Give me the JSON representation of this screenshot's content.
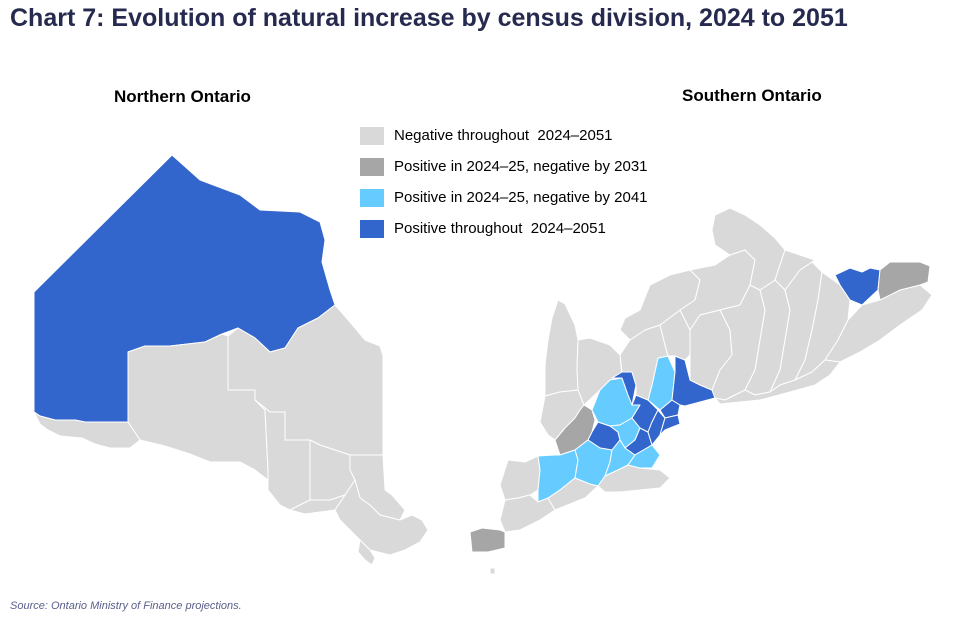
{
  "title": "Chart 7: Evolution of natural increase by census division, 2024 to 2051",
  "maps": {
    "north": {
      "heading": "Northern Ontario"
    },
    "south": {
      "heading": "Southern Ontario"
    }
  },
  "legend": [
    {
      "label": "Negative throughout  2024–2051",
      "color": "#d9d9d9"
    },
    {
      "label": "Positive in 2024–25, negative by 2031",
      "color": "#a6a6a6"
    },
    {
      "label": "Positive in 2024–25, negative by 2041",
      "color": "#66ccff"
    },
    {
      "label": "Positive throughout  2024–2051",
      "color": "#3366cc"
    }
  ],
  "source": "Source: Ontario Ministry of Finance projections."
}
